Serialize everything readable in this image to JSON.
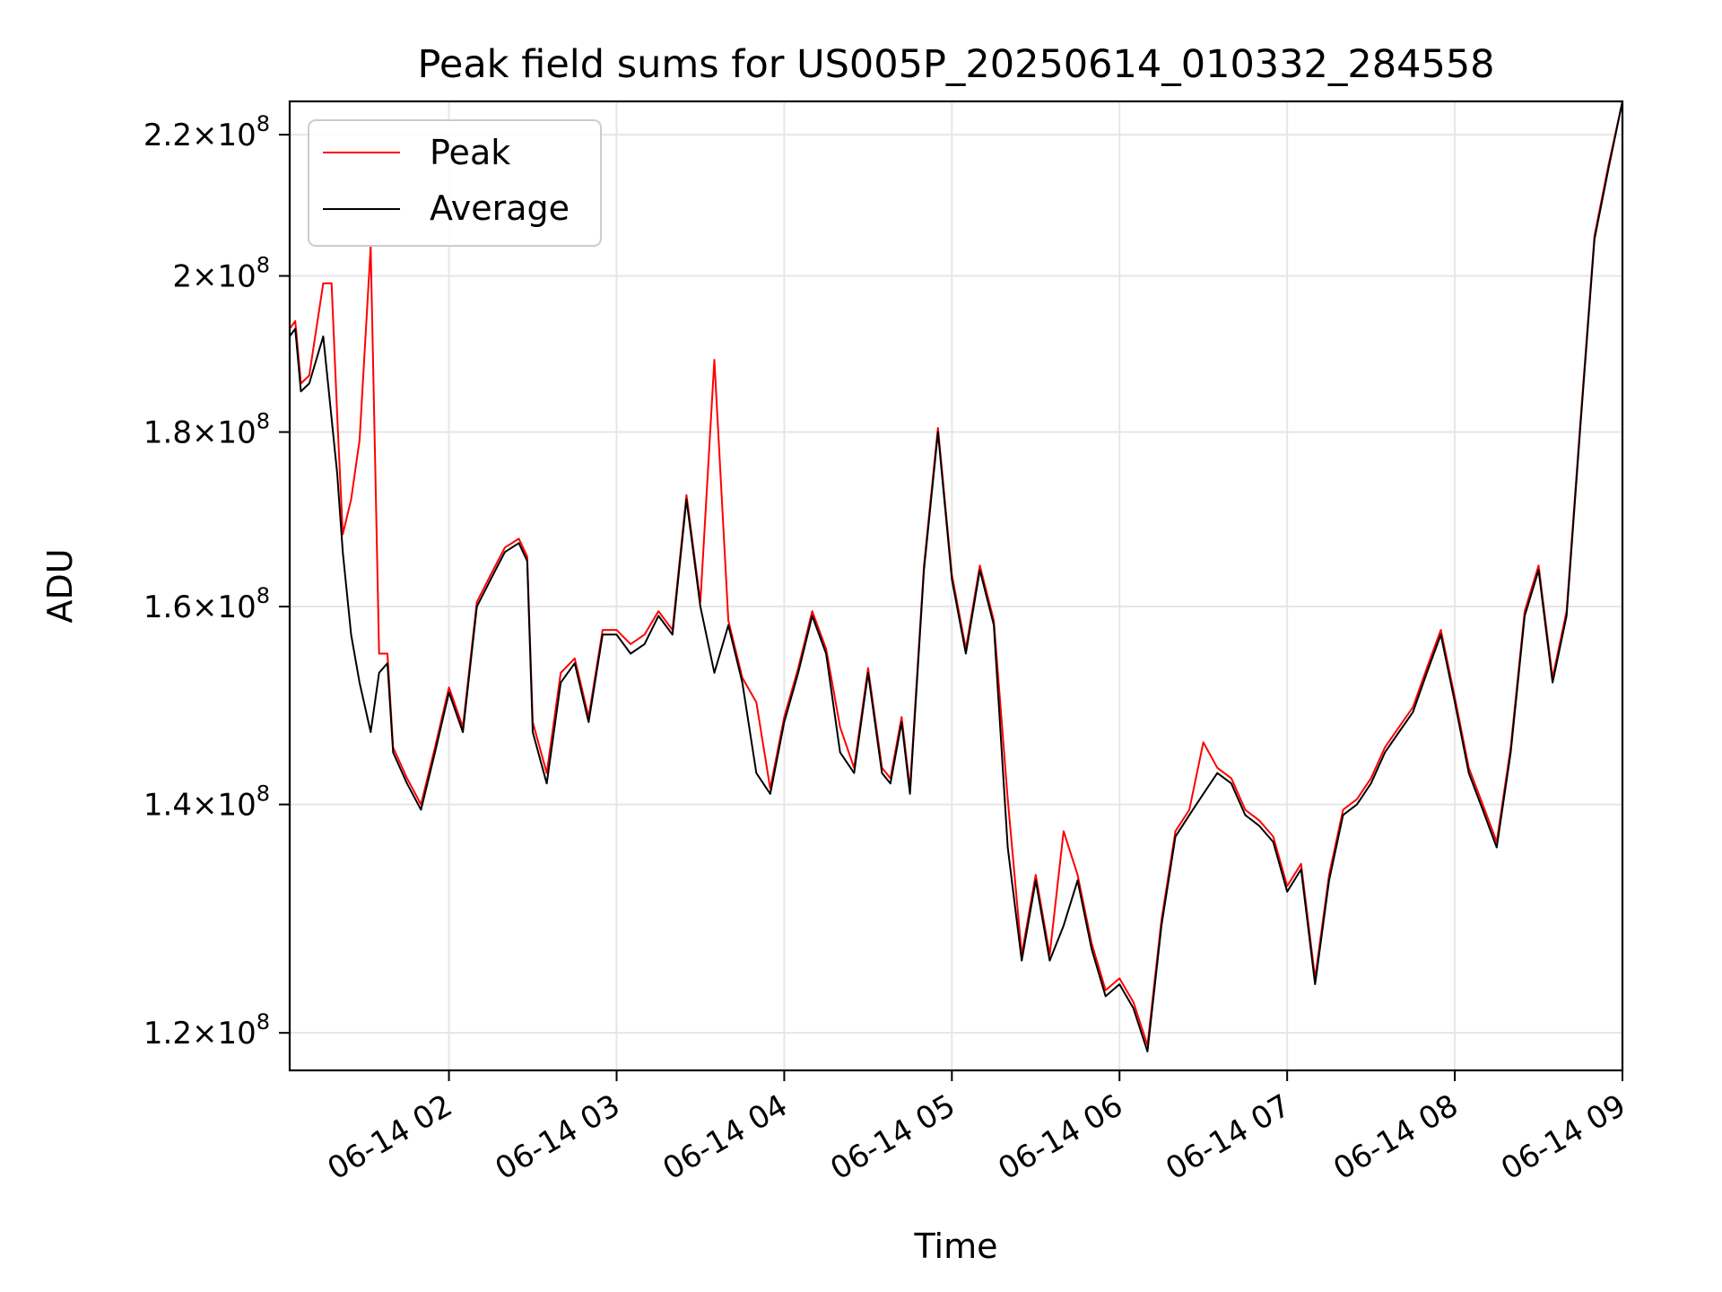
{
  "chart_data": {
    "type": "line",
    "title": "Peak field sums for US005P_20250614_010332_284558",
    "xlabel": "Time",
    "ylabel": "ADU",
    "yscale": "log",
    "grid": true,
    "legend_position": "upper left",
    "colors": {
      "peak": "#ff0000",
      "average": "#000000",
      "grid": "#e6e6e6"
    },
    "xlim": [
      "2025-06-14 01:03",
      "2025-06-14 09:00"
    ],
    "ylim": [
      117000000.0,
      225000000.0
    ],
    "x_ticks": [
      "06-14 02",
      "06-14 03",
      "06-14 04",
      "06-14 05",
      "06-14 06",
      "06-14 07",
      "06-14 08",
      "06-14 09"
    ],
    "y_ticks": [
      {
        "value": 120000000.0,
        "mantissa": "1.2",
        "exponent": "8"
      },
      {
        "value": 140000000.0,
        "mantissa": "1.4",
        "exponent": "8"
      },
      {
        "value": 160000000.0,
        "mantissa": "1.6",
        "exponent": "8"
      },
      {
        "value": 180000000.0,
        "mantissa": "1.8",
        "exponent": "8"
      },
      {
        "value": 200000000.0,
        "mantissa": "2",
        "exponent": "8"
      },
      {
        "value": 220000000.0,
        "mantissa": "2.2",
        "exponent": "8"
      }
    ],
    "series": [
      {
        "name": "Average",
        "x": [
          "2025-06-14 01:03",
          "2025-06-14 01:05",
          "2025-06-14 01:07",
          "2025-06-14 01:10",
          "2025-06-14 01:15",
          "2025-06-14 01:20",
          "2025-06-14 01:22",
          "2025-06-14 01:25",
          "2025-06-14 01:28",
          "2025-06-14 01:32",
          "2025-06-14 01:35",
          "2025-06-14 01:38",
          "2025-06-14 01:40",
          "2025-06-14 01:45",
          "2025-06-14 01:50",
          "2025-06-14 01:55",
          "2025-06-14 02:00",
          "2025-06-14 02:05",
          "2025-06-14 02:10",
          "2025-06-14 02:15",
          "2025-06-14 02:20",
          "2025-06-14 02:25",
          "2025-06-14 02:28",
          "2025-06-14 02:30",
          "2025-06-14 02:35",
          "2025-06-14 02:40",
          "2025-06-14 02:45",
          "2025-06-14 02:50",
          "2025-06-14 02:55",
          "2025-06-14 03:00",
          "2025-06-14 03:05",
          "2025-06-14 03:10",
          "2025-06-14 03:15",
          "2025-06-14 03:20",
          "2025-06-14 03:25",
          "2025-06-14 03:30",
          "2025-06-14 03:35",
          "2025-06-14 03:40",
          "2025-06-14 03:45",
          "2025-06-14 03:50",
          "2025-06-14 03:55",
          "2025-06-14 04:00",
          "2025-06-14 04:05",
          "2025-06-14 04:10",
          "2025-06-14 04:15",
          "2025-06-14 04:20",
          "2025-06-14 04:25",
          "2025-06-14 04:30",
          "2025-06-14 04:35",
          "2025-06-14 04:38",
          "2025-06-14 04:42",
          "2025-06-14 04:45",
          "2025-06-14 04:50",
          "2025-06-14 04:55",
          "2025-06-14 05:00",
          "2025-06-14 05:05",
          "2025-06-14 05:10",
          "2025-06-14 05:15",
          "2025-06-14 05:20",
          "2025-06-14 05:25",
          "2025-06-14 05:30",
          "2025-06-14 05:35",
          "2025-06-14 05:40",
          "2025-06-14 05:45",
          "2025-06-14 05:50",
          "2025-06-14 05:55",
          "2025-06-14 06:00",
          "2025-06-14 06:05",
          "2025-06-14 06:10",
          "2025-06-14 06:15",
          "2025-06-14 06:20",
          "2025-06-14 06:25",
          "2025-06-14 06:30",
          "2025-06-14 06:35",
          "2025-06-14 06:40",
          "2025-06-14 06:45",
          "2025-06-14 06:50",
          "2025-06-14 06:55",
          "2025-06-14 07:00",
          "2025-06-14 07:05",
          "2025-06-14 07:10",
          "2025-06-14 07:15",
          "2025-06-14 07:20",
          "2025-06-14 07:25",
          "2025-06-14 07:30",
          "2025-06-14 07:35",
          "2025-06-14 07:40",
          "2025-06-14 07:45",
          "2025-06-14 07:50",
          "2025-06-14 07:55",
          "2025-06-14 08:00",
          "2025-06-14 08:05",
          "2025-06-14 08:10",
          "2025-06-14 08:15",
          "2025-06-14 08:20",
          "2025-06-14 08:25",
          "2025-06-14 08:30",
          "2025-06-14 08:35",
          "2025-06-14 08:40",
          "2025-06-14 08:45",
          "2025-06-14 08:50",
          "2025-06-14 08:55",
          "2025-06-14 09:00"
        ],
        "values": [
          192000000.0,
          193000000.0,
          185000000.0,
          186000000.0,
          192000000.0,
          175000000.0,
          166000000.0,
          157000000.0,
          152000000.0,
          147000000.0,
          153000000.0,
          154000000.0,
          145000000.0,
          142000000.0,
          139500000.0,
          145000000.0,
          151000000.0,
          147000000.0,
          160000000.0,
          163000000.0,
          166000000.0,
          167000000.0,
          165000000.0,
          147000000.0,
          142000000.0,
          152000000.0,
          154000000.0,
          148000000.0,
          157000000.0,
          157000000.0,
          155000000.0,
          156000000.0,
          159000000.0,
          157000000.0,
          172000000.0,
          160000000.0,
          153000000.0,
          158000000.0,
          152000000.0,
          143000000.0,
          141000000.0,
          148000000.0,
          153000000.0,
          159000000.0,
          155000000.0,
          145000000.0,
          143000000.0,
          153000000.0,
          143000000.0,
          142000000.0,
          148000000.0,
          141000000.0,
          164000000.0,
          180000000.0,
          163000000.0,
          155000000.0,
          164000000.0,
          158000000.0,
          136000000.0,
          126000000.0,
          133000000.0,
          126000000.0,
          129000000.0,
          133000000.0,
          127000000.0,
          123000000.0,
          124000000.0,
          122000000.0,
          118500000.0,
          129000000.0,
          137000000.0,
          139000000.0,
          141000000.0,
          143000000.0,
          142000000.0,
          139000000.0,
          138000000.0,
          136500000.0,
          132000000.0,
          134000000.0,
          124000000.0,
          133000000.0,
          139000000.0,
          140000000.0,
          142000000.0,
          145000000.0,
          147000000.0,
          149000000.0,
          153000000.0,
          157000000.0,
          150000000.0,
          143000000.0,
          139500000.0,
          136000000.0,
          145000000.0,
          159000000.0,
          164000000.0,
          152000000.0,
          159000000.0,
          181000000.0,
          205000000.0,
          215000000.0,
          225000000.0
        ]
      },
      {
        "name": "Peak",
        "x": [
          "2025-06-14 01:03",
          "2025-06-14 01:05",
          "2025-06-14 01:07",
          "2025-06-14 01:10",
          "2025-06-14 01:15",
          "2025-06-14 01:18",
          "2025-06-14 01:20",
          "2025-06-14 01:22",
          "2025-06-14 01:25",
          "2025-06-14 01:28",
          "2025-06-14 01:32",
          "2025-06-14 01:35",
          "2025-06-14 01:38",
          "2025-06-14 01:40",
          "2025-06-14 01:45",
          "2025-06-14 01:50",
          "2025-06-14 01:55",
          "2025-06-14 02:00",
          "2025-06-14 02:05",
          "2025-06-14 02:10",
          "2025-06-14 02:15",
          "2025-06-14 02:20",
          "2025-06-14 02:25",
          "2025-06-14 02:28",
          "2025-06-14 02:30",
          "2025-06-14 02:35",
          "2025-06-14 02:40",
          "2025-06-14 02:45",
          "2025-06-14 02:50",
          "2025-06-14 02:55",
          "2025-06-14 03:00",
          "2025-06-14 03:05",
          "2025-06-14 03:10",
          "2025-06-14 03:15",
          "2025-06-14 03:20",
          "2025-06-14 03:25",
          "2025-06-14 03:30",
          "2025-06-14 03:35",
          "2025-06-14 03:40",
          "2025-06-14 03:45",
          "2025-06-14 03:50",
          "2025-06-14 03:55",
          "2025-06-14 04:00",
          "2025-06-14 04:05",
          "2025-06-14 04:10",
          "2025-06-14 04:15",
          "2025-06-14 04:20",
          "2025-06-14 04:25",
          "2025-06-14 04:30",
          "2025-06-14 04:35",
          "2025-06-14 04:38",
          "2025-06-14 04:42",
          "2025-06-14 04:45",
          "2025-06-14 04:50",
          "2025-06-14 04:55",
          "2025-06-14 05:00",
          "2025-06-14 05:05",
          "2025-06-14 05:10",
          "2025-06-14 05:15",
          "2025-06-14 05:20",
          "2025-06-14 05:25",
          "2025-06-14 05:30",
          "2025-06-14 05:35",
          "2025-06-14 05:40",
          "2025-06-14 05:45",
          "2025-06-14 05:50",
          "2025-06-14 05:55",
          "2025-06-14 06:00",
          "2025-06-14 06:05",
          "2025-06-14 06:10",
          "2025-06-14 06:15",
          "2025-06-14 06:20",
          "2025-06-14 06:25",
          "2025-06-14 06:30",
          "2025-06-14 06:35",
          "2025-06-14 06:40",
          "2025-06-14 06:45",
          "2025-06-14 06:50",
          "2025-06-14 06:55",
          "2025-06-14 07:00",
          "2025-06-14 07:05",
          "2025-06-14 07:10",
          "2025-06-14 07:15",
          "2025-06-14 07:20",
          "2025-06-14 07:25",
          "2025-06-14 07:30",
          "2025-06-14 07:35",
          "2025-06-14 07:40",
          "2025-06-14 07:45",
          "2025-06-14 07:50",
          "2025-06-14 07:55",
          "2025-06-14 08:00",
          "2025-06-14 08:05",
          "2025-06-14 08:10",
          "2025-06-14 08:15",
          "2025-06-14 08:20",
          "2025-06-14 08:25",
          "2025-06-14 08:30",
          "2025-06-14 08:35",
          "2025-06-14 08:40",
          "2025-06-14 08:45",
          "2025-06-14 08:50",
          "2025-06-14 08:55",
          "2025-06-14 09:00"
        ],
        "values": [
          193000000.0,
          194000000.0,
          186000000.0,
          187000000.0,
          199000000.0,
          199000000.0,
          182000000.0,
          168000000.0,
          172000000.0,
          179000000.0,
          204000000.0,
          155000000.0,
          155000000.0,
          145500000.0,
          142500000.0,
          140000000.0,
          145500000.0,
          151500000.0,
          147500000.0,
          160500000.0,
          163500000.0,
          166500000.0,
          167500000.0,
          165500000.0,
          148000000.0,
          143000000.0,
          153000000.0,
          154500000.0,
          148500000.0,
          157500000.0,
          157500000.0,
          156000000.0,
          157000000.0,
          159500000.0,
          157500000.0,
          172500000.0,
          160500000.0,
          189000000.0,
          158500000.0,
          152500000.0,
          150000000.0,
          141500000.0,
          148500000.0,
          153500000.0,
          159500000.0,
          155500000.0,
          147500000.0,
          143500000.0,
          153500000.0,
          143500000.0,
          142500000.0,
          148500000.0,
          141500000.0,
          164500000.0,
          180500000.0,
          163500000.0,
          155500000.0,
          164500000.0,
          158500000.0,
          140500000.0,
          126500000.0,
          133500000.0,
          126500000.0,
          137500000.0,
          133500000.0,
          127500000.0,
          123500000.0,
          124500000.0,
          122500000.0,
          119000000.0,
          129500000.0,
          137500000.0,
          139500000.0,
          146000000.0,
          143500000.0,
          142500000.0,
          139500000.0,
          138500000.0,
          137000000.0,
          132500000.0,
          134500000.0,
          124500000.0,
          133500000.0,
          139500000.0,
          140500000.0,
          142500000.0,
          145500000.0,
          147500000.0,
          149500000.0,
          153500000.0,
          157500000.0,
          150500000.0,
          143500000.0,
          140000000.0,
          136500000.0,
          145500000.0,
          159500000.0,
          164500000.0,
          152500000.0,
          159500000.0,
          181500000.0,
          205500000.0,
          215500000.0,
          225000000.0
        ]
      }
    ]
  }
}
